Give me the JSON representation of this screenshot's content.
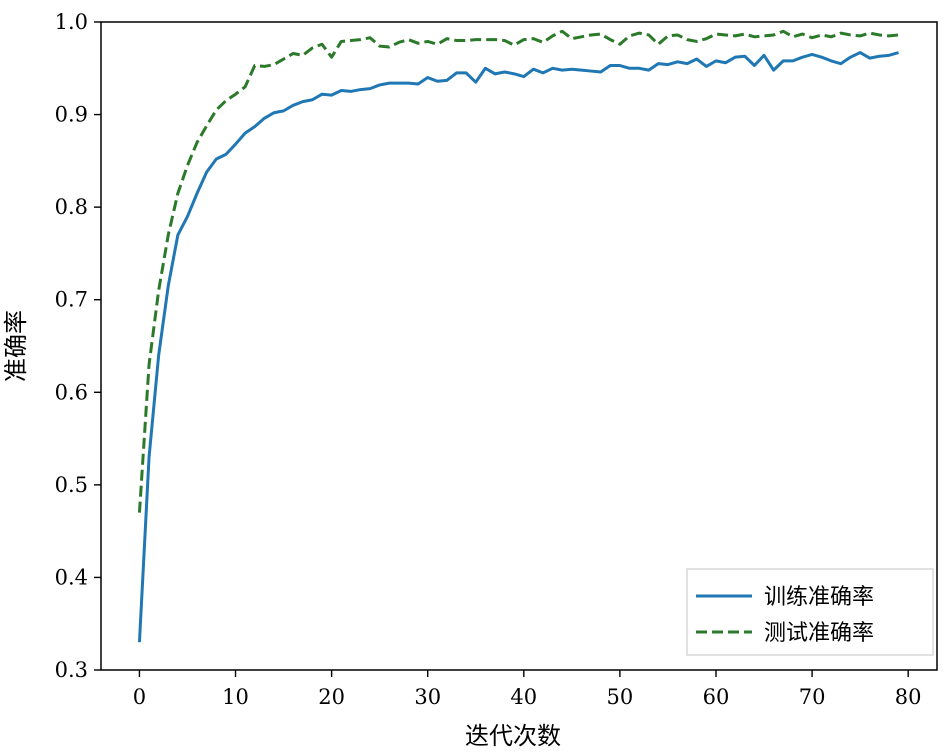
{
  "chart_data": {
    "type": "line",
    "xlabel": "迭代次数",
    "ylabel": "准确率",
    "xlim": [
      -4,
      83
    ],
    "ylim": [
      0.3,
      1.0
    ],
    "x_ticks": [
      0,
      10,
      20,
      30,
      40,
      50,
      60,
      70,
      80
    ],
    "y_ticks": [
      0.3,
      0.4,
      0.5,
      0.6,
      0.7,
      0.8,
      0.9,
      1.0
    ],
    "x_tick_labels": [
      "0",
      "10",
      "20",
      "30",
      "40",
      "50",
      "60",
      "70",
      "80"
    ],
    "y_tick_labels": [
      "0.3",
      "0.4",
      "0.5",
      "0.6",
      "0.7",
      "0.8",
      "0.9",
      "1.0"
    ],
    "grid": false,
    "legend_position": "bottom-right",
    "series": [
      {
        "name": "训练准确率",
        "color": "#1f77b4",
        "style": "solid",
        "x": [
          0,
          1,
          2,
          3,
          4,
          5,
          6,
          7,
          8,
          9,
          10,
          11,
          12,
          13,
          14,
          15,
          16,
          17,
          18,
          19,
          20,
          21,
          22,
          23,
          24,
          25,
          26,
          27,
          28,
          29,
          30,
          31,
          32,
          33,
          34,
          35,
          36,
          37,
          38,
          39,
          40,
          41,
          42,
          43,
          44,
          45,
          46,
          47,
          48,
          49,
          50,
          51,
          52,
          53,
          54,
          55,
          56,
          57,
          58,
          59,
          60,
          61,
          62,
          63,
          64,
          65,
          66,
          67,
          68,
          69,
          70,
          71,
          72,
          73,
          74,
          75,
          76,
          77,
          78,
          79
        ],
        "values": [
          0.33,
          0.53,
          0.64,
          0.715,
          0.77,
          0.79,
          0.815,
          0.838,
          0.852,
          0.857,
          0.868,
          0.88,
          0.887,
          0.896,
          0.902,
          0.904,
          0.91,
          0.914,
          0.916,
          0.922,
          0.921,
          0.926,
          0.925,
          0.927,
          0.928,
          0.932,
          0.934,
          0.934,
          0.934,
          0.933,
          0.94,
          0.936,
          0.937,
          0.945,
          0.945,
          0.935,
          0.95,
          0.944,
          0.946,
          0.944,
          0.941,
          0.949,
          0.945,
          0.95,
          0.948,
          0.949,
          0.948,
          0.947,
          0.946,
          0.953,
          0.953,
          0.95,
          0.95,
          0.948,
          0.955,
          0.954,
          0.957,
          0.955,
          0.96,
          0.952,
          0.958,
          0.956,
          0.962,
          0.963,
          0.953,
          0.964,
          0.948,
          0.958,
          0.958,
          0.962,
          0.965,
          0.962,
          0.958,
          0.955,
          0.962,
          0.967,
          0.961,
          0.963,
          0.964,
          0.967
        ]
      },
      {
        "name": "测试准确率",
        "color": "#2a7a2a",
        "style": "dashed",
        "x": [
          0,
          1,
          2,
          3,
          4,
          5,
          6,
          7,
          8,
          9,
          10,
          11,
          12,
          13,
          14,
          15,
          16,
          17,
          18,
          19,
          20,
          21,
          22,
          23,
          24,
          25,
          26,
          27,
          28,
          29,
          30,
          31,
          32,
          33,
          34,
          35,
          36,
          37,
          38,
          39,
          40,
          41,
          42,
          43,
          44,
          45,
          46,
          47,
          48,
          49,
          50,
          51,
          52,
          53,
          54,
          55,
          56,
          57,
          58,
          59,
          60,
          61,
          62,
          63,
          64,
          65,
          66,
          67,
          68,
          69,
          70,
          71,
          72,
          73,
          74,
          75,
          76,
          77,
          78,
          79
        ],
        "values": [
          0.47,
          0.63,
          0.71,
          0.77,
          0.815,
          0.845,
          0.87,
          0.888,
          0.905,
          0.915,
          0.922,
          0.93,
          0.953,
          0.952,
          0.954,
          0.96,
          0.966,
          0.964,
          0.972,
          0.976,
          0.962,
          0.979,
          0.98,
          0.981,
          0.983,
          0.974,
          0.973,
          0.978,
          0.981,
          0.977,
          0.979,
          0.976,
          0.982,
          0.98,
          0.98,
          0.981,
          0.981,
          0.981,
          0.98,
          0.975,
          0.981,
          0.982,
          0.978,
          0.985,
          0.99,
          0.982,
          0.984,
          0.986,
          0.987,
          0.981,
          0.976,
          0.985,
          0.988,
          0.986,
          0.976,
          0.985,
          0.986,
          0.981,
          0.979,
          0.982,
          0.987,
          0.986,
          0.985,
          0.987,
          0.984,
          0.985,
          0.986,
          0.99,
          0.984,
          0.987,
          0.983,
          0.986,
          0.984,
          0.988,
          0.986,
          0.985,
          0.988,
          0.986,
          0.985,
          0.986
        ]
      }
    ]
  }
}
